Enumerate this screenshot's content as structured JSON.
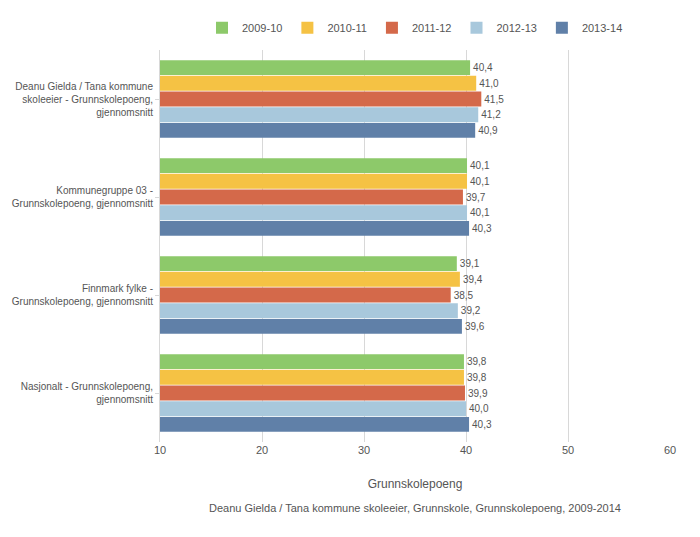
{
  "chart_data": {
    "type": "bar",
    "orientation": "horizontal",
    "categories": [
      "Deanu Gielda / Tana kommune\nskoleeier - Grunnskolepoeng,\ngjennomsnitt",
      "Kommunegruppe 03 -\nGrunnskolepoeng, gjennomsnitt",
      "Finnmark fylke -\nGrunnskolepoeng, gjennomsnitt",
      "Nasjonalt - Grunnskolepoeng,\ngjennomsnitt"
    ],
    "series": [
      {
        "name": "2009-10",
        "color": "#8DC96A",
        "values": [
          40.4,
          40.1,
          39.1,
          39.8
        ],
        "value_labels": [
          "40,4",
          "40,1",
          "39,1",
          "39,8"
        ]
      },
      {
        "name": "2010-11",
        "color": "#F5C244",
        "values": [
          41.0,
          40.1,
          39.4,
          39.8
        ],
        "value_labels": [
          "41,0",
          "40,1",
          "39,4",
          "39,8"
        ]
      },
      {
        "name": "2011-12",
        "color": "#D4694A",
        "values": [
          41.5,
          39.7,
          38.5,
          39.9
        ],
        "value_labels": [
          "41,5",
          "39,7",
          "38,5",
          "39,9"
        ]
      },
      {
        "name": "2012-13",
        "color": "#A8C8DC",
        "values": [
          41.2,
          40.1,
          39.2,
          40.0
        ],
        "value_labels": [
          "41,2",
          "40,1",
          "39,2",
          "40,0"
        ]
      },
      {
        "name": "2013-14",
        "color": "#6080A8",
        "values": [
          40.9,
          40.3,
          39.6,
          40.3
        ],
        "value_labels": [
          "40,9",
          "40,3",
          "39,6",
          "40,3"
        ]
      }
    ],
    "xlabel": "Grunnskolepoeng",
    "xlim": [
      10,
      60
    ],
    "xticks": [
      10,
      20,
      30,
      40,
      50,
      60
    ],
    "grid": true,
    "legend": "top",
    "data_labels": true,
    "annotations": [
      "Deanu Gielda / Tana kommune skoleeier, Grunnskole, Grunnskolepoeng, 2009-2014"
    ]
  }
}
